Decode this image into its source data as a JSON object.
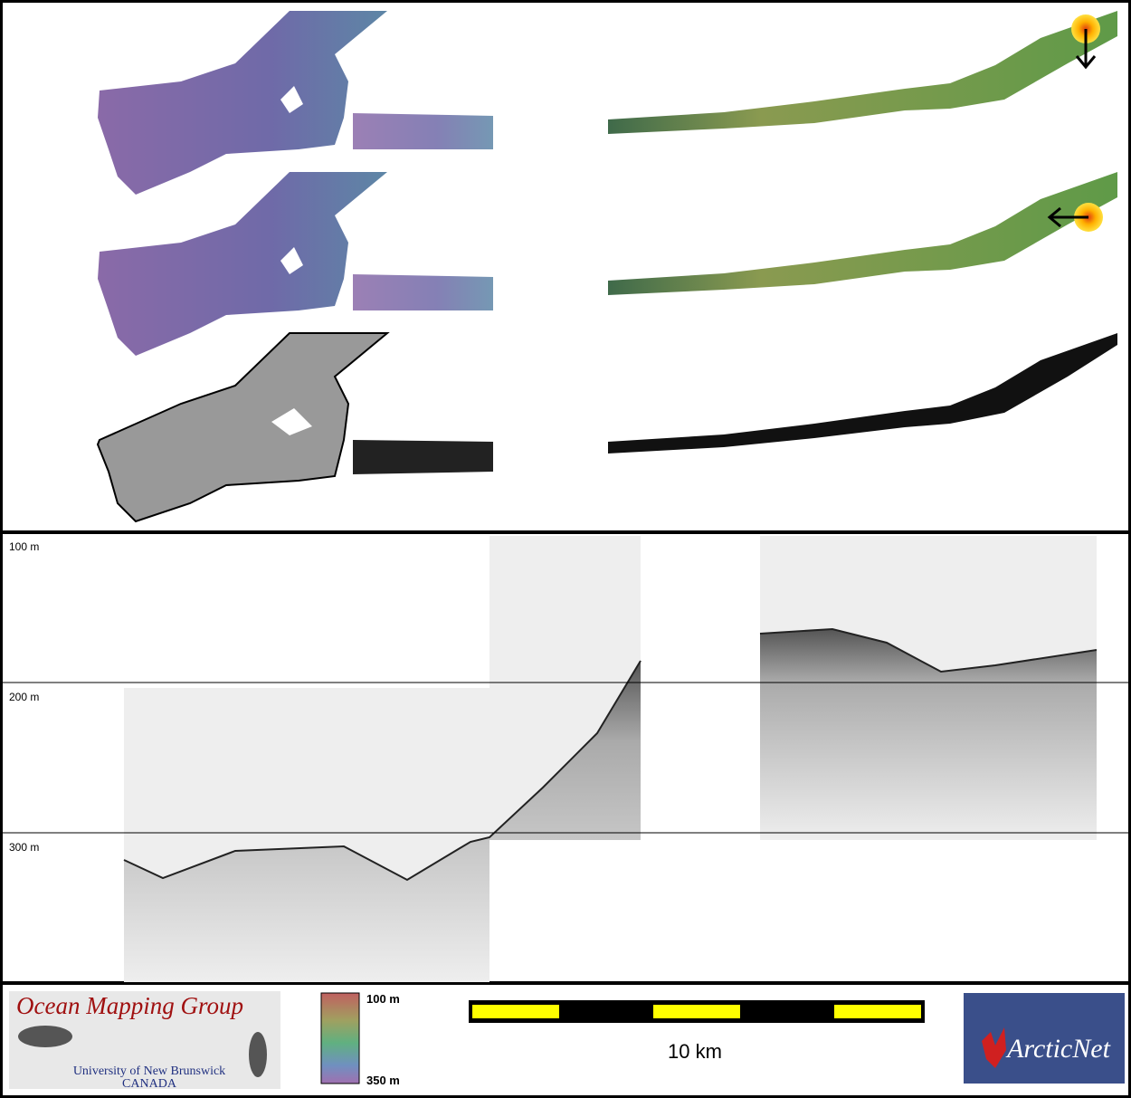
{
  "profile": {
    "depth_labels": [
      "100 m",
      "200 m",
      "300 m"
    ]
  },
  "logo": {
    "title": "Ocean Mapping Group",
    "university": "University of New Brunswick",
    "country": "CANADA"
  },
  "colorbar": {
    "top_label": "100 m",
    "bottom_label": "350 m"
  },
  "scale_bar": {
    "label": "10 km"
  },
  "partner_logo": {
    "label": "ArcticNet"
  }
}
